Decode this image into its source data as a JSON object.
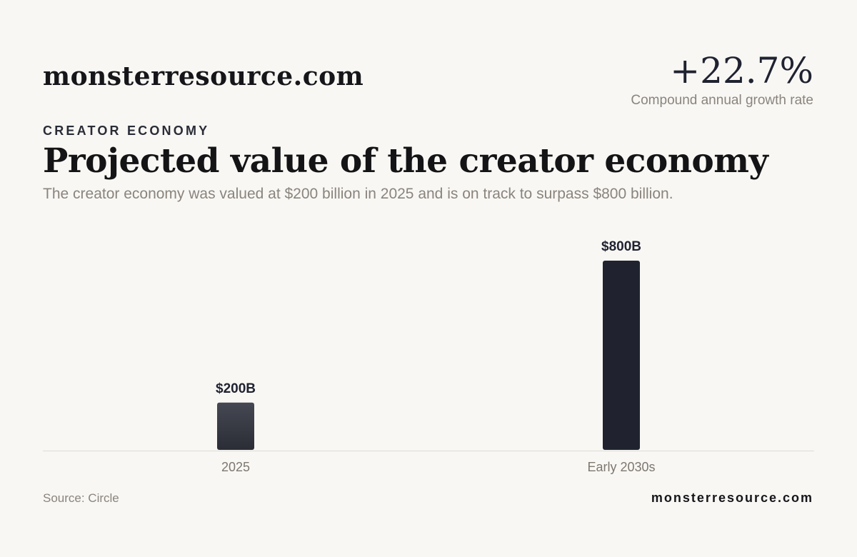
{
  "header": {
    "brand": "monsterresource.com",
    "stat_value": "+22.7%",
    "stat_caption": "Compound annual growth rate"
  },
  "eyebrow": "CREATOR ECONOMY",
  "title": "Projected value of the creator economy",
  "subtitle": "The creator economy was valued at $200 billion in 2025 and is on track to surpass $800 billion.",
  "footer": {
    "source": "Source: Circle",
    "brand": "monsterresource.com"
  },
  "colors": {
    "background": "#f8f7f4",
    "bar_2025": "#3a3c46",
    "bar_2030s": "#20232f",
    "axis": "#dedbd5"
  },
  "chart_data": {
    "type": "bar",
    "categories": [
      "2025",
      "Early 2030s"
    ],
    "values": [
      200,
      800
    ],
    "data_labels": [
      "$200B",
      "$800B"
    ],
    "unit": "billion USD",
    "ylim": [
      0,
      800
    ],
    "grid": false,
    "legend": "none"
  }
}
